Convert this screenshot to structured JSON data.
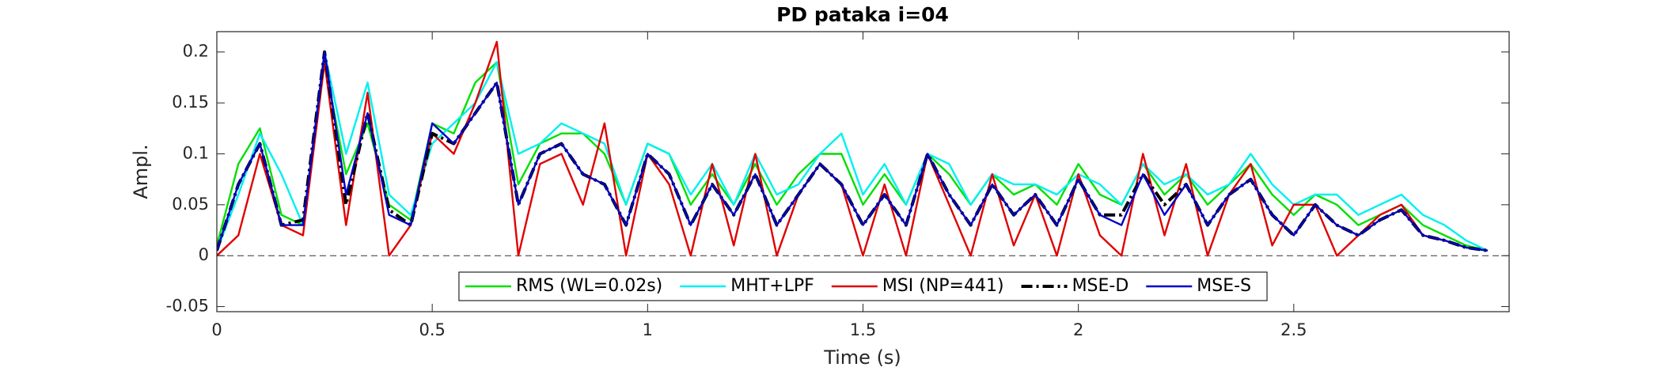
{
  "chart_data": {
    "type": "line",
    "title": "PD pataka i=04",
    "xlabel": "Time (s)",
    "ylabel": "Ampl.",
    "x": [
      0,
      0.05,
      0.1,
      0.15,
      0.2,
      0.25,
      0.3,
      0.35,
      0.4,
      0.45,
      0.5,
      0.55,
      0.6,
      0.65,
      0.7,
      0.75,
      0.8,
      0.85,
      0.9,
      0.95,
      1.0,
      1.05,
      1.1,
      1.15,
      1.2,
      1.25,
      1.3,
      1.35,
      1.4,
      1.45,
      1.5,
      1.55,
      1.6,
      1.65,
      1.7,
      1.75,
      1.8,
      1.85,
      1.9,
      1.95,
      2.0,
      2.05,
      2.1,
      2.15,
      2.2,
      2.25,
      2.3,
      2.35,
      2.4,
      2.45,
      2.5,
      2.55,
      2.6,
      2.65,
      2.7,
      2.75,
      2.8,
      2.85,
      2.9,
      2.95
    ],
    "series": [
      {
        "name": "RMS (WL=0.02s)",
        "color": "#00e000",
        "values": [
          0.01,
          0.09,
          0.125,
          0.04,
          0.03,
          0.19,
          0.08,
          0.13,
          0.05,
          0.035,
          0.13,
          0.12,
          0.17,
          0.19,
          0.07,
          0.11,
          0.12,
          0.12,
          0.1,
          0.05,
          0.11,
          0.1,
          0.05,
          0.08,
          0.05,
          0.09,
          0.05,
          0.08,
          0.1,
          0.1,
          0.05,
          0.08,
          0.05,
          0.1,
          0.08,
          0.05,
          0.08,
          0.06,
          0.07,
          0.05,
          0.09,
          0.06,
          0.05,
          0.09,
          0.06,
          0.08,
          0.05,
          0.07,
          0.09,
          0.06,
          0.04,
          0.06,
          0.05,
          0.03,
          0.04,
          0.05,
          0.03,
          0.02,
          0.01,
          0.005
        ]
      },
      {
        "name": "MHT+LPF",
        "color": "#00f0f0",
        "values": [
          0.005,
          0.06,
          0.12,
          0.08,
          0.03,
          0.2,
          0.1,
          0.17,
          0.06,
          0.04,
          0.11,
          0.13,
          0.15,
          0.19,
          0.1,
          0.11,
          0.13,
          0.12,
          0.11,
          0.05,
          0.11,
          0.1,
          0.06,
          0.09,
          0.05,
          0.1,
          0.06,
          0.07,
          0.1,
          0.12,
          0.06,
          0.09,
          0.05,
          0.1,
          0.09,
          0.05,
          0.08,
          0.07,
          0.07,
          0.06,
          0.08,
          0.07,
          0.05,
          0.09,
          0.07,
          0.08,
          0.06,
          0.07,
          0.1,
          0.07,
          0.05,
          0.06,
          0.06,
          0.04,
          0.05,
          0.06,
          0.04,
          0.03,
          0.015,
          0.005
        ]
      },
      {
        "name": "MSI (NP=441)",
        "color": "#e00000",
        "values": [
          0,
          0.02,
          0.1,
          0.03,
          0.02,
          0.19,
          0.03,
          0.16,
          0,
          0.03,
          0.12,
          0.1,
          0.15,
          0.21,
          0,
          0.09,
          0.1,
          0.05,
          0.13,
          0,
          0.1,
          0.07,
          0,
          0.09,
          0.01,
          0.1,
          0,
          0.06,
          0.09,
          0.07,
          0,
          0.07,
          0,
          0.1,
          0.05,
          0,
          0.08,
          0.01,
          0.06,
          0,
          0.08,
          0.02,
          0,
          0.1,
          0.02,
          0.09,
          0,
          0.06,
          0.09,
          0.01,
          0.05,
          0.05,
          0,
          0.02,
          0.04,
          0.05,
          0.02,
          0.015,
          0.008,
          0.005
        ]
      },
      {
        "name": "MSE-D",
        "color": "#000000",
        "dash": "dashdot",
        "values": [
          0.005,
          0.07,
          0.11,
          0.03,
          0.035,
          0.2,
          0.05,
          0.14,
          0.045,
          0.03,
          0.12,
          0.11,
          0.14,
          0.17,
          0.05,
          0.1,
          0.11,
          0.08,
          0.07,
          0.03,
          0.1,
          0.08,
          0.03,
          0.07,
          0.04,
          0.08,
          0.03,
          0.06,
          0.09,
          0.07,
          0.03,
          0.06,
          0.03,
          0.1,
          0.06,
          0.03,
          0.07,
          0.04,
          0.06,
          0.03,
          0.075,
          0.04,
          0.04,
          0.08,
          0.05,
          0.07,
          0.03,
          0.06,
          0.075,
          0.04,
          0.02,
          0.05,
          0.03,
          0.02,
          0.035,
          0.045,
          0.02,
          0.015,
          0.008,
          0.005
        ]
      },
      {
        "name": "MSE-S",
        "color": "#0000c8",
        "values": [
          0.005,
          0.07,
          0.11,
          0.03,
          0.03,
          0.2,
          0.06,
          0.14,
          0.04,
          0.03,
          0.13,
          0.11,
          0.14,
          0.17,
          0.05,
          0.1,
          0.11,
          0.08,
          0.07,
          0.03,
          0.1,
          0.08,
          0.03,
          0.07,
          0.04,
          0.08,
          0.03,
          0.06,
          0.09,
          0.07,
          0.03,
          0.06,
          0.03,
          0.1,
          0.06,
          0.03,
          0.07,
          0.04,
          0.06,
          0.03,
          0.075,
          0.04,
          0.03,
          0.08,
          0.04,
          0.07,
          0.03,
          0.06,
          0.075,
          0.04,
          0.02,
          0.05,
          0.03,
          0.02,
          0.035,
          0.045,
          0.02,
          0.015,
          0.008,
          0.005
        ]
      }
    ],
    "xlim": [
      0,
      3.0
    ],
    "ylim": [
      -0.055,
      0.22
    ],
    "xticks": [
      0,
      0.5,
      1,
      1.5,
      2,
      2.5
    ],
    "yticks": [
      -0.05,
      0,
      0.05,
      0.1,
      0.15,
      0.2
    ],
    "zero_line": true,
    "legend": "lower center"
  }
}
